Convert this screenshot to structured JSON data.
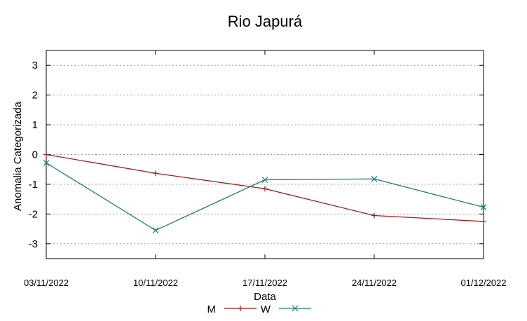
{
  "chart_data": {
    "type": "line",
    "title": "Rio Japurá",
    "xlabel": "Data",
    "ylabel": "Anomalia Categorizada",
    "categories": [
      "03/11/2022",
      "10/11/2022",
      "17/11/2022",
      "24/11/2022",
      "01/12/2022"
    ],
    "y_ticks": [
      "3",
      "2",
      "1",
      "0",
      "-1",
      "-2",
      "-3"
    ],
    "ylim": [
      -3.5,
      3.5
    ],
    "grid": true,
    "legend_position": "bottom",
    "series": [
      {
        "name": "M",
        "color": "#9b1c1c",
        "marker": "plus",
        "values": [
          0.0,
          -0.63,
          -1.15,
          -2.05,
          -2.25
        ]
      },
      {
        "name": "W",
        "color": "#1f7a7a",
        "marker": "cross",
        "values": [
          -0.28,
          -2.55,
          -0.85,
          -0.82,
          -1.77
        ]
      }
    ]
  }
}
